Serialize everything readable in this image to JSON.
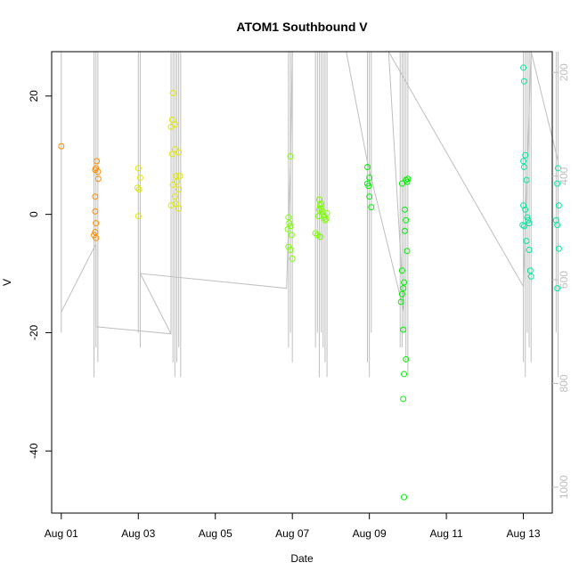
{
  "chart_data": {
    "type": "scatter",
    "title": "ATOM1 Southbound V",
    "xlabel": "Date",
    "ylabel": "V",
    "xlim": [
      -0.25,
      12.75
    ],
    "ylim": [
      -50.5,
      27.5
    ],
    "x_ticks": [
      {
        "value": 0,
        "label": "Aug 01"
      },
      {
        "value": 2,
        "label": "Aug 03"
      },
      {
        "value": 4,
        "label": "Aug 05"
      },
      {
        "value": 6,
        "label": "Aug 07"
      },
      {
        "value": 8,
        "label": "Aug 09"
      },
      {
        "value": 10,
        "label": "Aug 11"
      },
      {
        "value": 12,
        "label": "Aug 13"
      }
    ],
    "y_ticks": [
      {
        "value": 20,
        "label": "20"
      },
      {
        "value": 0,
        "label": "0"
      },
      {
        "value": -20,
        "label": "-20"
      },
      {
        "value": -40,
        "label": "-40"
      }
    ],
    "y2_lim": [
      1050,
      160
    ],
    "y2_ticks": [
      {
        "value": 200,
        "label": "200"
      },
      {
        "value": 400,
        "label": "400"
      },
      {
        "value": 600,
        "label": "600"
      },
      {
        "value": 800,
        "label": "800"
      },
      {
        "value": 1000,
        "label": "1000"
      }
    ],
    "grid": false,
    "legend": "none",
    "overlay_color": "#bebebe",
    "series": [
      {
        "color": "#ff8c00",
        "points": [
          [
            0.0,
            11.5
          ],
          [
            0.92,
            9.0
          ],
          [
            0.9,
            7.8
          ],
          [
            0.95,
            7.2
          ],
          [
            0.88,
            7.5
          ],
          [
            0.96,
            6.0
          ],
          [
            0.88,
            3.0
          ],
          [
            0.88,
            0.5
          ],
          [
            0.9,
            -1.5
          ],
          [
            0.88,
            -3.0
          ],
          [
            0.9,
            -4.0
          ],
          [
            0.85,
            -3.5
          ]
        ]
      },
      {
        "color": "#e0e800",
        "points": [
          [
            2.0,
            7.8
          ],
          [
            2.05,
            6.2
          ],
          [
            2.02,
            4.2
          ],
          [
            1.98,
            4.5
          ],
          [
            2.0,
            -0.3
          ],
          [
            2.9,
            20.5
          ],
          [
            2.88,
            16.0
          ],
          [
            2.95,
            15.2
          ],
          [
            2.85,
            14.8
          ],
          [
            2.95,
            11.0
          ],
          [
            2.88,
            10.2
          ],
          [
            3.05,
            10.5
          ],
          [
            2.98,
            6.5
          ],
          [
            3.08,
            6.5
          ],
          [
            3.0,
            5.5
          ],
          [
            2.9,
            5.0
          ],
          [
            3.05,
            4.2
          ],
          [
            2.95,
            3.0
          ],
          [
            2.98,
            1.8
          ],
          [
            3.05,
            1.0
          ],
          [
            2.85,
            1.5
          ]
        ]
      },
      {
        "color": "#7cff00",
        "points": [
          [
            5.95,
            9.8
          ],
          [
            5.9,
            -0.5
          ],
          [
            5.92,
            -1.5
          ],
          [
            5.95,
            -2.0
          ],
          [
            5.88,
            -2.5
          ],
          [
            5.98,
            -3.5
          ],
          [
            5.9,
            -5.5
          ],
          [
            5.95,
            -6.0
          ],
          [
            6.0,
            -7.5
          ],
          [
            6.7,
            2.5
          ],
          [
            6.72,
            1.5
          ],
          [
            6.75,
            1.0
          ],
          [
            6.78,
            0.5
          ],
          [
            6.8,
            0.0
          ],
          [
            6.82,
            -0.5
          ],
          [
            6.85,
            -1.0
          ],
          [
            6.75,
            1.8
          ],
          [
            6.7,
            0.8
          ],
          [
            6.68,
            -0.3
          ],
          [
            6.88,
            -0.8
          ],
          [
            6.9,
            0.2
          ],
          [
            6.65,
            -3.5
          ],
          [
            6.72,
            -3.8
          ],
          [
            6.6,
            -3.2
          ]
        ]
      },
      {
        "color": "#00ee00",
        "points": [
          [
            7.95,
            8.0
          ],
          [
            8.0,
            6.2
          ],
          [
            7.98,
            4.8
          ],
          [
            7.95,
            5.2
          ],
          [
            8.0,
            3.0
          ],
          [
            8.05,
            1.2
          ],
          [
            8.85,
            5.2
          ],
          [
            8.95,
            5.8
          ],
          [
            9.0,
            6.0
          ],
          [
            8.98,
            5.5
          ],
          [
            8.92,
            0.8
          ],
          [
            8.95,
            -1.0
          ],
          [
            8.92,
            -2.8
          ],
          [
            8.98,
            -6.2
          ],
          [
            8.85,
            -9.5
          ],
          [
            8.9,
            -11.5
          ],
          [
            8.88,
            -12.5
          ],
          [
            8.85,
            -13.5
          ],
          [
            8.82,
            -14.8
          ],
          [
            8.88,
            -19.5
          ],
          [
            8.95,
            -24.5
          ],
          [
            8.9,
            -27.0
          ],
          [
            8.88,
            -31.2
          ],
          [
            8.9,
            -47.8
          ]
        ]
      },
      {
        "color": "#00e8a0",
        "points": [
          [
            12.0,
            24.8
          ],
          [
            12.02,
            22.5
          ],
          [
            12.05,
            10.0
          ],
          [
            12.0,
            9.0
          ],
          [
            12.02,
            8.0
          ],
          [
            12.08,
            5.8
          ],
          [
            12.0,
            1.5
          ],
          [
            12.05,
            0.8
          ],
          [
            12.1,
            -0.5
          ],
          [
            12.12,
            -1.0
          ],
          [
            12.15,
            -1.5
          ],
          [
            12.02,
            -2.0
          ],
          [
            11.98,
            -1.8
          ],
          [
            12.08,
            -4.5
          ],
          [
            12.15,
            -6.0
          ],
          [
            12.18,
            -9.5
          ],
          [
            12.2,
            -10.5
          ],
          [
            12.9,
            7.8
          ],
          [
            12.88,
            5.2
          ],
          [
            12.92,
            1.5
          ],
          [
            12.85,
            -1.0
          ],
          [
            12.88,
            -1.8
          ],
          [
            12.92,
            -5.8
          ],
          [
            12.88,
            -12.5
          ]
        ]
      }
    ]
  }
}
